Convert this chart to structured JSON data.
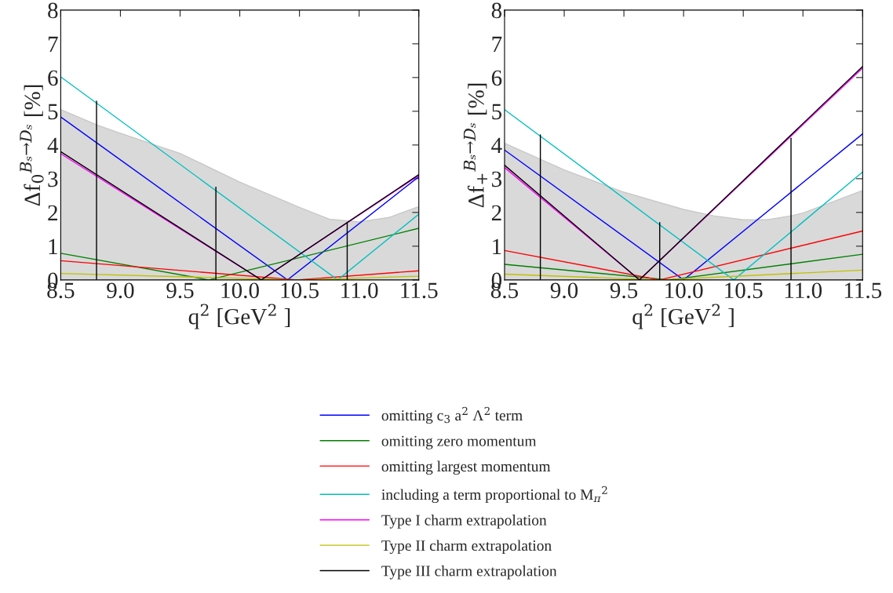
{
  "chart_data": [
    {
      "type": "line",
      "xlabel": "q$^{2}$ [GeV$^{2}$ ]",
      "ylabel": "Δf$_{0}$$^{Bₛ→Dₛ}$ [%]",
      "xlim": [
        8.5,
        11.5
      ],
      "ylim": [
        0,
        8
      ],
      "xticks": [
        8.5,
        {
          "value": 9,
          "label": "9.0"
        },
        9.5,
        {
          "value": 10,
          "label": "10.0"
        },
        10.5,
        {
          "value": 11,
          "label": "11.0"
        },
        11.5
      ],
      "yticks": [
        0,
        1,
        2,
        3,
        4,
        5,
        6,
        7,
        8
      ],
      "grid": false,
      "legend": "bottom",
      "series": [
        {
          "type": "area",
          "color": "#d9d9d9",
          "x": [
            8.5,
            8.8,
            9.0,
            9.5,
            10.0,
            10.5,
            10.75,
            11.0,
            11.25,
            11.5
          ],
          "values": [
            5.05,
            4.6,
            4.35,
            3.75,
            2.9,
            2.15,
            1.8,
            1.72,
            1.85,
            2.17
          ]
        },
        {
          "name": "omitting c$_{3}$ a$^{2}$ Λ$^{2}$ term",
          "color": "#0000ff",
          "x": [
            8.5,
            10.4,
            11.5
          ],
          "values": [
            4.83,
            0,
            3.06
          ]
        },
        {
          "name": "omitting zero momentum",
          "color": "#008000",
          "x": [
            8.5,
            9.74,
            11.5
          ],
          "values": [
            0.79,
            0,
            1.53
          ]
        },
        {
          "name": "omitting largest momentum",
          "color": "#ff0000",
          "x": [
            8.5,
            10.48,
            11.5
          ],
          "values": [
            0.57,
            0,
            0.27
          ]
        },
        {
          "name": "including a term proportional to M$_{π}$$^{2}$",
          "color": "#00c0c0",
          "x": [
            8.5,
            10.82,
            11.5
          ],
          "values": [
            6.02,
            0,
            1.95
          ]
        },
        {
          "name": "Type I charm extrapolation",
          "color": "#ff00ff",
          "x": [
            8.5,
            10.18,
            11.5
          ],
          "values": [
            3.74,
            0,
            3.1
          ]
        },
        {
          "name": "Type II charm extrapolation",
          "color": "#c0c000",
          "x": [
            8.5,
            10.5,
            11.5
          ],
          "values": [
            0.19,
            0,
            0.11
          ]
        },
        {
          "name": "Type III charm extrapolation",
          "color": "#000000",
          "x": [
            8.5,
            10.18,
            11.5
          ],
          "values": [
            3.8,
            0,
            3.12
          ]
        },
        {
          "color": "#000000",
          "x": [
            8.8,
            8.8
          ],
          "values": [
            0,
            5.3
          ]
        },
        {
          "color": "#000000",
          "x": [
            9.8,
            9.8
          ],
          "values": [
            0,
            2.75
          ]
        },
        {
          "color": "#000000",
          "x": [
            10.9,
            10.9
          ],
          "values": [
            0,
            1.7
          ]
        }
      ]
    },
    {
      "type": "line",
      "xlabel": "q$^{2}$ [GeV$^{2}$ ]",
      "ylabel": "Δf$_{+}$$^{Bₛ→Dₛ}$ [%]",
      "xlim": [
        8.5,
        11.5
      ],
      "ylim": [
        0,
        8
      ],
      "xticks": [
        8.5,
        {
          "value": 9,
          "label": "9.0"
        },
        9.5,
        {
          "value": 10,
          "label": "10.0"
        },
        10.5,
        {
          "value": 11,
          "label": "11.0"
        },
        11.5
      ],
      "yticks": [
        0,
        1,
        2,
        3,
        4,
        5,
        6,
        7,
        8
      ],
      "grid": false,
      "series": [
        {
          "type": "area",
          "color": "#d9d9d9",
          "x": [
            8.5,
            9.0,
            9.5,
            10.0,
            10.25,
            10.5,
            10.7,
            10.9,
            11.0,
            11.5
          ],
          "values": [
            4.05,
            3.26,
            2.6,
            2.09,
            1.9,
            1.78,
            1.78,
            1.9,
            1.98,
            2.65
          ]
        },
        {
          "color": "#0000ff",
          "x": [
            8.5,
            10.0,
            11.5
          ],
          "values": [
            3.85,
            0,
            4.33
          ]
        },
        {
          "color": "#008000",
          "x": [
            8.5,
            9.88,
            11.5
          ],
          "values": [
            0.46,
            0,
            0.76
          ]
        },
        {
          "color": "#ff0000",
          "x": [
            8.5,
            9.8,
            11.5
          ],
          "values": [
            0.87,
            0,
            1.45
          ]
        },
        {
          "color": "#00c0c0",
          "x": [
            8.5,
            10.42,
            11.5
          ],
          "values": [
            5.05,
            0,
            3.2
          ]
        },
        {
          "color": "#ff00ff",
          "x": [
            8.5,
            9.63,
            11.5
          ],
          "values": [
            3.33,
            0,
            6.28
          ]
        },
        {
          "color": "#c0c000",
          "x": [
            8.5,
            9.8,
            11.5
          ],
          "values": [
            0.17,
            0,
            0.29
          ]
        },
        {
          "color": "#000000",
          "x": [
            8.5,
            9.63,
            11.5
          ],
          "values": [
            3.4,
            0,
            6.33
          ]
        },
        {
          "color": "#000000",
          "x": [
            8.8,
            8.8
          ],
          "values": [
            0,
            4.3
          ]
        },
        {
          "color": "#000000",
          "x": [
            9.8,
            9.8
          ],
          "values": [
            0,
            1.7
          ]
        },
        {
          "color": "#000000",
          "x": [
            10.9,
            10.9
          ],
          "values": [
            0,
            4.2
          ]
        }
      ]
    }
  ]
}
